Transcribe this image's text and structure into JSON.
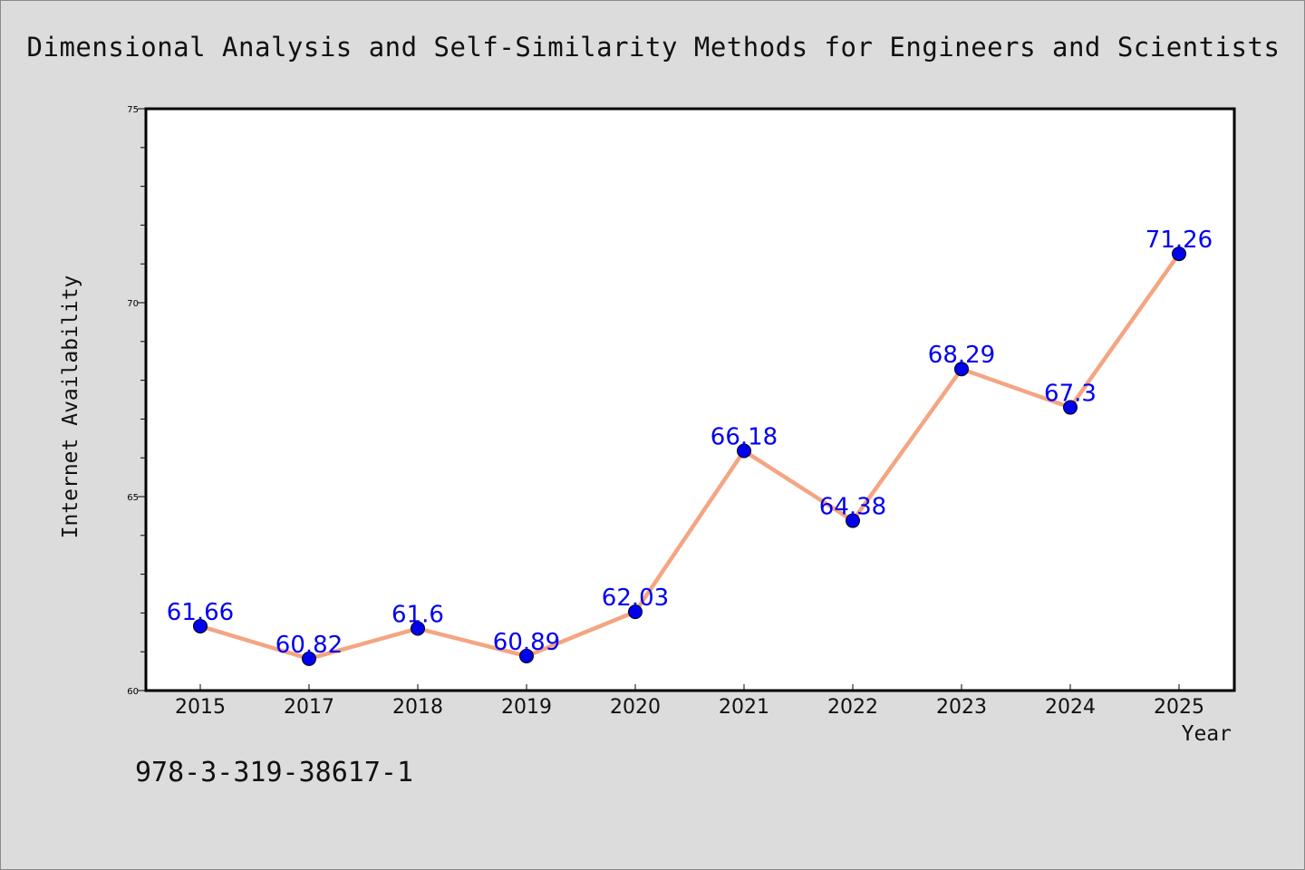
{
  "chart_data": {
    "type": "line",
    "title": "Dimensional Analysis and Self-Similarity Methods for Engineers and Scientists",
    "xlabel": "Year",
    "ylabel": "Internet Availability",
    "categories": [
      "2015",
      "2017",
      "2018",
      "2019",
      "2020",
      "2021",
      "2022",
      "2023",
      "2024",
      "2025"
    ],
    "values": [
      61.66,
      60.82,
      61.6,
      60.89,
      62.03,
      66.18,
      64.38,
      68.29,
      67.3,
      71.26
    ],
    "data_labels": [
      "61.66",
      "60.82",
      "61.6",
      "60.89",
      "62.03",
      "66.18",
      "64.38",
      "68.29",
      "67.3",
      "71.26"
    ],
    "ylim": [
      60,
      75
    ],
    "yticks": [
      60,
      65,
      70,
      75
    ],
    "ytick_labels": [
      "60",
      "65",
      "70",
      "75"
    ],
    "grid": false,
    "line_color": "#f4a582",
    "marker_color": "#0000ee",
    "label_color": "#0000ee",
    "background_color": "#dcdcdc",
    "plot_background": "#ffffff"
  },
  "footnote": "978-3-319-38617-1"
}
